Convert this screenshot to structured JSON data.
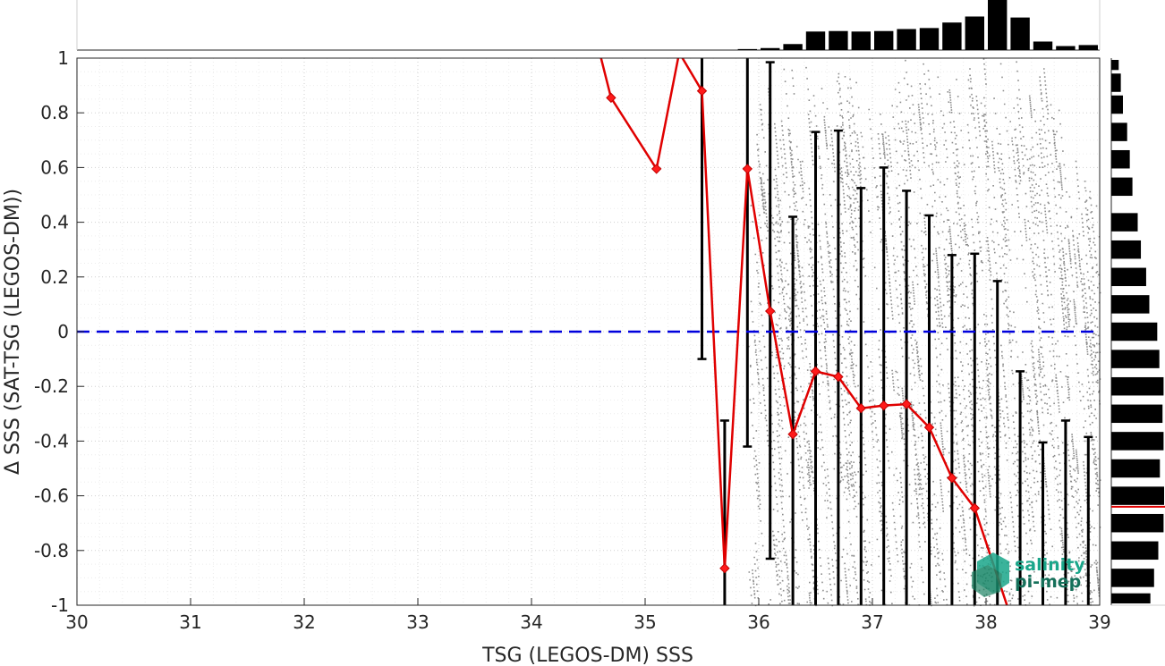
{
  "chart_data": {
    "type": "scatter",
    "xlabel": "TSG (LEGOS-DM) SSS",
    "ylabel": "Δ SSS (SAT-TSG (LEGOS-DM))",
    "xlim": [
      30,
      39
    ],
    "ylim": [
      -1,
      1
    ],
    "x_ticks": [
      "30",
      "31",
      "32",
      "33",
      "34",
      "35",
      "36",
      "37",
      "38",
      "39"
    ],
    "y_ticks": [
      "-1",
      "-0.8",
      "-0.6",
      "-0.4",
      "-0.2",
      "0",
      "0.2",
      "0.4",
      "0.6",
      "0.8",
      "1"
    ],
    "grid": true,
    "zero_line": {
      "y": 0,
      "color": "#0000dd",
      "style": "dashed"
    },
    "scatter_cloud": {
      "color": "#8c8c8c",
      "x_range": [
        35.9,
        39
      ],
      "description_band": "dense diagonal streaks of gray points"
    },
    "mean_line": {
      "color": "#e00000",
      "marker": "diamond",
      "points": [
        {
          "x": 34.6,
          "y": 1.02
        },
        {
          "x": 34.7,
          "y": 0.855
        },
        {
          "x": 35.1,
          "y": 0.595
        },
        {
          "x": 35.3,
          "y": 1.02
        },
        {
          "x": 35.5,
          "y": 0.88
        },
        {
          "x": 35.7,
          "y": -0.865
        },
        {
          "x": 35.9,
          "y": 0.595
        },
        {
          "x": 36.1,
          "y": 0.075
        },
        {
          "x": 36.3,
          "y": -0.375
        },
        {
          "x": 36.5,
          "y": -0.145
        },
        {
          "x": 36.7,
          "y": -0.165
        },
        {
          "x": 36.9,
          "y": -0.28
        },
        {
          "x": 37.1,
          "y": -0.27
        },
        {
          "x": 37.3,
          "y": -0.265
        },
        {
          "x": 37.5,
          "y": -0.35
        },
        {
          "x": 37.7,
          "y": -0.535
        },
        {
          "x": 37.9,
          "y": -0.645
        },
        {
          "x": 38.2,
          "y": -1.02
        }
      ]
    },
    "error_bars": {
      "color": "#000000",
      "bars": [
        {
          "x": 35.5,
          "low": -0.1,
          "high": 1.02
        },
        {
          "x": 35.7,
          "low": -1.02,
          "high": -0.325
        },
        {
          "x": 35.9,
          "low": -0.42,
          "high": 1.02
        },
        {
          "x": 36.1,
          "low": -0.83,
          "high": 0.985
        },
        {
          "x": 36.3,
          "low": -1.02,
          "high": 0.42
        },
        {
          "x": 36.5,
          "low": -1.02,
          "high": 0.73
        },
        {
          "x": 36.7,
          "low": -1.02,
          "high": 0.735
        },
        {
          "x": 36.9,
          "low": -1.02,
          "high": 0.525
        },
        {
          "x": 37.1,
          "low": -1.02,
          "high": 0.6
        },
        {
          "x": 37.3,
          "low": -1.02,
          "high": 0.515
        },
        {
          "x": 37.5,
          "low": -1.02,
          "high": 0.425
        },
        {
          "x": 37.7,
          "low": -1.02,
          "high": 0.28
        },
        {
          "x": 37.9,
          "low": -1.02,
          "high": 0.285
        },
        {
          "x": 38.1,
          "low": -1.02,
          "high": 0.185
        },
        {
          "x": 38.3,
          "low": -1.02,
          "high": -0.145
        },
        {
          "x": 38.5,
          "low": -1.02,
          "high": -0.405
        },
        {
          "x": 38.7,
          "low": -1.02,
          "high": -0.325
        },
        {
          "x": 38.9,
          "low": -1.02,
          "high": -0.385
        }
      ]
    },
    "top_histogram": {
      "bin_width": 0.2,
      "bins": [
        {
          "x": 35.9,
          "count": 0.02
        },
        {
          "x": 36.1,
          "count": 0.04
        },
        {
          "x": 36.3,
          "count": 0.12
        },
        {
          "x": 36.5,
          "count": 0.37
        },
        {
          "x": 36.7,
          "count": 0.38
        },
        {
          "x": 36.9,
          "count": 0.37
        },
        {
          "x": 37.1,
          "count": 0.38
        },
        {
          "x": 37.3,
          "count": 0.42
        },
        {
          "x": 37.5,
          "count": 0.44
        },
        {
          "x": 37.7,
          "count": 0.55
        },
        {
          "x": 37.9,
          "count": 0.67
        },
        {
          "x": 38.1,
          "count": 1.0
        },
        {
          "x": 38.3,
          "count": 0.65
        },
        {
          "x": 38.5,
          "count": 0.17
        },
        {
          "x": 38.7,
          "count": 0.08
        },
        {
          "x": 38.9,
          "count": 0.1
        }
      ]
    },
    "right_histogram": {
      "bin_height": 0.08,
      "mean_marker_y": -0.64,
      "mean_marker_color": "#e00000",
      "bins": [
        {
          "y": 0.99,
          "count": 0.14
        },
        {
          "y": 0.91,
          "count": 0.18
        },
        {
          "y": 0.83,
          "count": 0.22
        },
        {
          "y": 0.73,
          "count": 0.3
        },
        {
          "y": 0.63,
          "count": 0.35
        },
        {
          "y": 0.53,
          "count": 0.4
        },
        {
          "y": 0.4,
          "count": 0.5
        },
        {
          "y": 0.3,
          "count": 0.56
        },
        {
          "y": 0.2,
          "count": 0.66
        },
        {
          "y": 0.1,
          "count": 0.72
        },
        {
          "y": 0.0,
          "count": 0.87
        },
        {
          "y": -0.1,
          "count": 0.91
        },
        {
          "y": -0.2,
          "count": 0.99
        },
        {
          "y": -0.3,
          "count": 0.97
        },
        {
          "y": -0.4,
          "count": 0.99
        },
        {
          "y": -0.5,
          "count": 0.92
        },
        {
          "y": -0.6,
          "count": 1.0
        },
        {
          "y": -0.7,
          "count": 0.99
        },
        {
          "y": -0.8,
          "count": 0.89
        },
        {
          "y": -0.9,
          "count": 0.81
        },
        {
          "y": -0.99,
          "count": 0.74
        }
      ]
    },
    "watermark": {
      "line1": "salinity",
      "line2": "pi-mep",
      "color": "#1aa68a"
    }
  }
}
